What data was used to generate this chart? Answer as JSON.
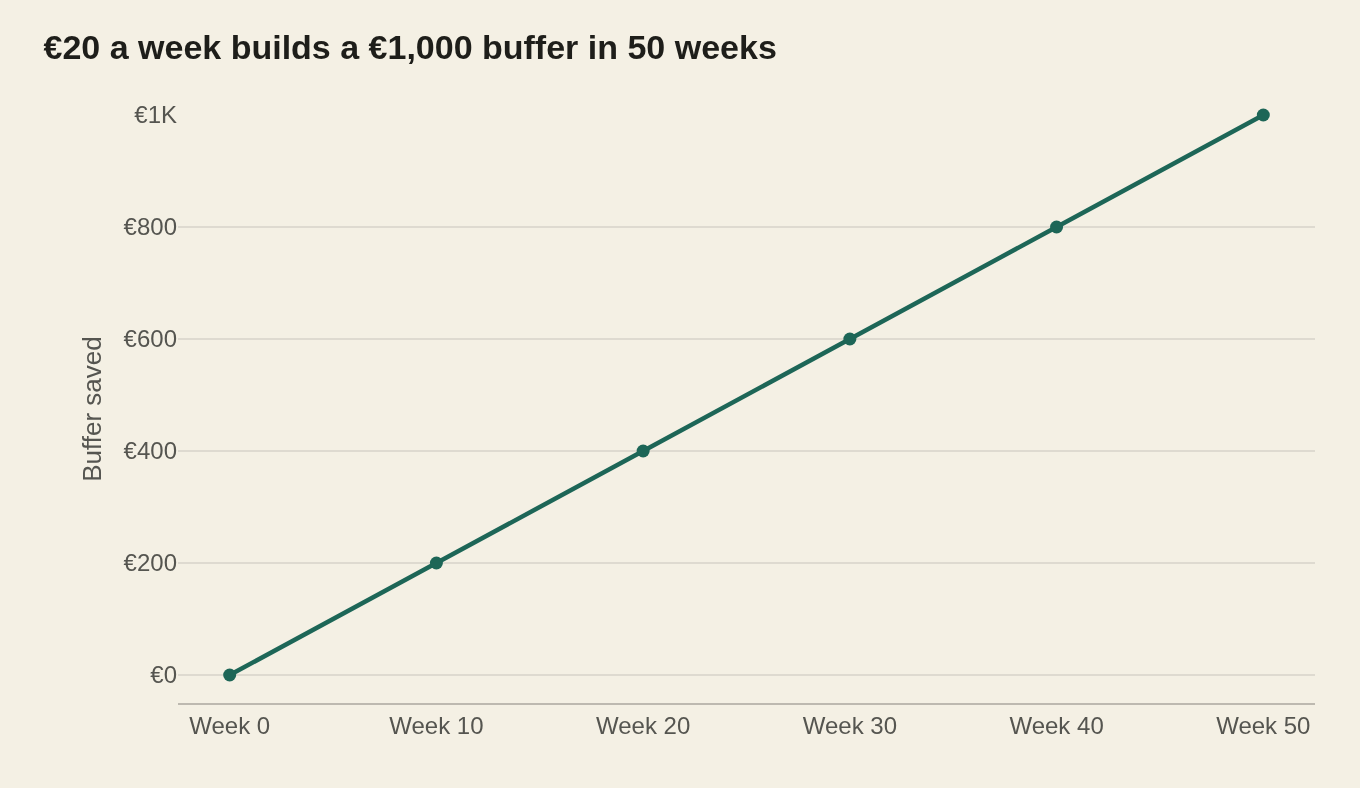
{
  "chart_data": {
    "type": "line",
    "title": "€20 a week builds a €1,000 buffer in 50 weeks",
    "ylabel": "Buffer saved",
    "categories": [
      "Week 0",
      "Week 10",
      "Week 20",
      "Week 30",
      "Week 40",
      "Week 50"
    ],
    "series": [
      {
        "color": "#1d6657",
        "values": [
          0,
          200,
          400,
          600,
          800,
          1000
        ]
      }
    ],
    "ylim": [
      -50,
      1000
    ],
    "yticks": [
      {
        "value": 0,
        "label": "€0"
      },
      {
        "value": 200,
        "label": "€200"
      },
      {
        "value": 400,
        "label": "€400"
      },
      {
        "value": 600,
        "label": "€600"
      },
      {
        "value": 800,
        "label": "€800"
      },
      {
        "value": 1000,
        "label": "€1K"
      }
    ],
    "grid": "y",
    "legend": false,
    "marker": "circle",
    "line_style": "solid"
  }
}
